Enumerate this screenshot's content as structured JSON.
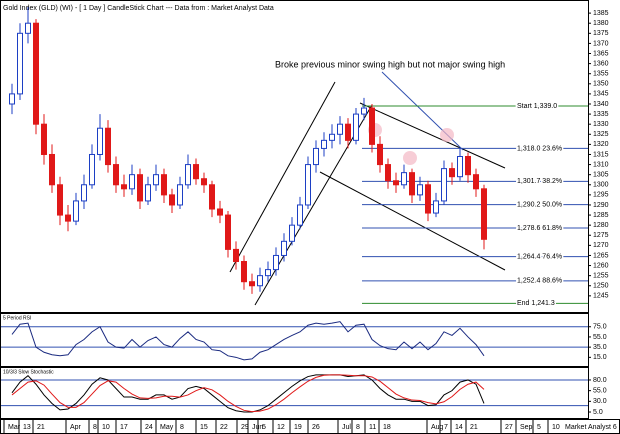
{
  "chart_data": {
    "type": "candlestick",
    "title": "Gold Index (GLD) (WI) -  [ 1 Day ] CandleStick Chart --- Data from : Market Analyst Data",
    "annotation": "Broke previous minor swing high but not major swing high",
    "brand": "Market Analyst 6",
    "x_labels": [
      "Mar",
      "13",
      "21",
      "Apr",
      "8",
      "10",
      "17",
      "24",
      "May",
      "8",
      "15",
      "22",
      "29",
      "Jun",
      "5",
      "12",
      "19",
      "26",
      "Jul",
      "8",
      "11",
      "18",
      "Aug",
      "7",
      "14",
      "21",
      "27",
      "Sep",
      "5",
      "10"
    ],
    "up_color": "#1c3fc4",
    "down_color": "#e01818",
    "ylim": [
      1237,
      1391
    ],
    "yticks": [
      1385,
      1380,
      1375,
      1370,
      1365,
      1360,
      1355,
      1350,
      1345,
      1340,
      1335,
      1330,
      1325,
      1320,
      1315,
      1310,
      1305,
      1300,
      1295,
      1290,
      1285,
      1280,
      1275,
      1270,
      1265,
      1260,
      1255,
      1250,
      1245
    ],
    "candles": [
      [
        1340,
        1350,
        1335,
        1345
      ],
      [
        1345,
        1380,
        1342,
        1375
      ],
      [
        1375,
        1388,
        1370,
        1380
      ],
      [
        1380,
        1382,
        1325,
        1330
      ],
      [
        1330,
        1335,
        1310,
        1315
      ],
      [
        1315,
        1320,
        1296,
        1300
      ],
      [
        1300,
        1304,
        1280,
        1285
      ],
      [
        1285,
        1290,
        1277,
        1282
      ],
      [
        1282,
        1296,
        1280,
        1292
      ],
      [
        1292,
        1305,
        1288,
        1300
      ],
      [
        1300,
        1320,
        1298,
        1315
      ],
      [
        1315,
        1335,
        1312,
        1328
      ],
      [
        1328,
        1332,
        1306,
        1310
      ],
      [
        1310,
        1314,
        1296,
        1300
      ],
      [
        1300,
        1305,
        1294,
        1298
      ],
      [
        1298,
        1310,
        1295,
        1305
      ],
      [
        1305,
        1308,
        1288,
        1292
      ],
      [
        1292,
        1304,
        1290,
        1300
      ],
      [
        1300,
        1310,
        1297,
        1305
      ],
      [
        1305,
        1308,
        1291,
        1295
      ],
      [
        1295,
        1298,
        1286,
        1290
      ],
      [
        1290,
        1304,
        1288,
        1300
      ],
      [
        1300,
        1315,
        1298,
        1310
      ],
      [
        1310,
        1313,
        1300,
        1303
      ],
      [
        1303,
        1306,
        1296,
        1300
      ],
      [
        1300,
        1302,
        1284,
        1288
      ],
      [
        1288,
        1292,
        1281,
        1285
      ],
      [
        1285,
        1287,
        1264,
        1268
      ],
      [
        1268,
        1272,
        1258,
        1262
      ],
      [
        1262,
        1265,
        1248,
        1252
      ],
      [
        1252,
        1256,
        1246,
        1250
      ],
      [
        1250,
        1259,
        1247,
        1255
      ],
      [
        1255,
        1262,
        1252,
        1258
      ],
      [
        1258,
        1269,
        1255,
        1265
      ],
      [
        1265,
        1276,
        1262,
        1272
      ],
      [
        1272,
        1284,
        1270,
        1280
      ],
      [
        1280,
        1294,
        1278,
        1290
      ],
      [
        1290,
        1314,
        1288,
        1310
      ],
      [
        1310,
        1322,
        1306,
        1318
      ],
      [
        1318,
        1326,
        1314,
        1322
      ],
      [
        1322,
        1330,
        1318,
        1325
      ],
      [
        1325,
        1334,
        1320,
        1330
      ],
      [
        1330,
        1333,
        1318,
        1322
      ],
      [
        1322,
        1338,
        1320,
        1335
      ],
      [
        1335,
        1343,
        1332,
        1338
      ],
      [
        1338,
        1340,
        1316,
        1320
      ],
      [
        1320,
        1324,
        1306,
        1310
      ],
      [
        1310,
        1313,
        1298,
        1302
      ],
      [
        1302,
        1306,
        1296,
        1300
      ],
      [
        1300,
        1310,
        1298,
        1306
      ],
      [
        1306,
        1308,
        1291,
        1295
      ],
      [
        1295,
        1304,
        1292,
        1300
      ],
      [
        1300,
        1302,
        1282,
        1286
      ],
      [
        1286,
        1296,
        1284,
        1292
      ],
      [
        1292,
        1312,
        1290,
        1308
      ],
      [
        1308,
        1311,
        1300,
        1304
      ],
      [
        1304,
        1318,
        1302,
        1314
      ],
      [
        1314,
        1316,
        1301,
        1305
      ],
      [
        1305,
        1308,
        1294,
        1298
      ],
      [
        1298,
        1300,
        1268,
        1273
      ]
    ],
    "fib_levels": [
      {
        "value": 1339.0,
        "label": "Start 1,339.0"
      },
      {
        "value": 1318.0,
        "label": "1,318.0 23.6%"
      },
      {
        "value": 1301.7,
        "label": "1,301.7 38.2%"
      },
      {
        "value": 1290.2,
        "label": "1,290.2 50.0%"
      },
      {
        "value": 1278.6,
        "label": "1,278.6 61.8%"
      },
      {
        "value": 1264.4,
        "label": "1,264.4 76.4%"
      },
      {
        "value": 1252.4,
        "label": "1,252.4 88.6%"
      },
      {
        "value": 1241.3,
        "label": "End 1,241.3"
      }
    ],
    "fib_colors": [
      "#2e8b2e",
      "#3050b0",
      "#3050b0",
      "#3050b0",
      "#3050b0",
      "#3050b0",
      "#3050b0",
      "#2e8b2e"
    ],
    "rsi": {
      "type": "line",
      "title": "5 Period RSI",
      "color": "#1a2a80",
      "ylim": [
        -2,
        100
      ],
      "yticks": [
        {
          "value": 75,
          "label": "75.0"
        },
        {
          "value": 55,
          "label": "55.0"
        },
        {
          "value": 35,
          "label": "35.0"
        },
        {
          "value": 15,
          "label": "15.0"
        }
      ],
      "bands": [
        75,
        35
      ],
      "values": [
        60,
        80,
        82,
        35,
        25,
        20,
        18,
        20,
        40,
        50,
        65,
        75,
        45,
        35,
        33,
        50,
        35,
        48,
        55,
        40,
        35,
        52,
        65,
        50,
        45,
        30,
        28,
        18,
        15,
        10,
        12,
        25,
        30,
        40,
        50,
        58,
        65,
        78,
        82,
        80,
        82,
        85,
        65,
        78,
        80,
        50,
        38,
        32,
        30,
        45,
        32,
        45,
        30,
        42,
        65,
        58,
        72,
        55,
        40,
        18
      ]
    },
    "stochastic": {
      "type": "line",
      "title": "10/3/3 Slow Stochastic",
      "ylim": [
        -9,
        108
      ],
      "yticks": [
        {
          "value": 80,
          "label": "80.0"
        },
        {
          "value": 55,
          "label": "55.0"
        },
        {
          "value": 30,
          "label": "30.0"
        },
        {
          "value": 5,
          "label": "5.0"
        }
      ],
      "bands": [
        80,
        20
      ],
      "series": [
        {
          "color": "#000000",
          "values": [
            50,
            75,
            90,
            70,
            45,
            25,
            10,
            12,
            25,
            45,
            70,
            85,
            80,
            60,
            40,
            40,
            35,
            35,
            45,
            45,
            35,
            40,
            60,
            65,
            60,
            45,
            30,
            15,
            8,
            5,
            5,
            10,
            20,
            35,
            50,
            65,
            78,
            88,
            92,
            92,
            92,
            92,
            88,
            90,
            92,
            80,
            60,
            45,
            35,
            35,
            30,
            30,
            20,
            22,
            45,
            55,
            75,
            80,
            70,
            25
          ]
        },
        {
          "color": "#e01818",
          "values": [
            45,
            60,
            75,
            78,
            68,
            47,
            27,
            16,
            16,
            27,
            47,
            67,
            78,
            75,
            60,
            47,
            38,
            37,
            38,
            42,
            42,
            40,
            45,
            55,
            62,
            57,
            45,
            30,
            18,
            9,
            6,
            7,
            12,
            22,
            35,
            50,
            64,
            77,
            86,
            91,
            92,
            92,
            91,
            90,
            90,
            87,
            77,
            62,
            47,
            38,
            33,
            32,
            27,
            24,
            29,
            41,
            58,
            70,
            75,
            58
          ]
        }
      ]
    }
  }
}
